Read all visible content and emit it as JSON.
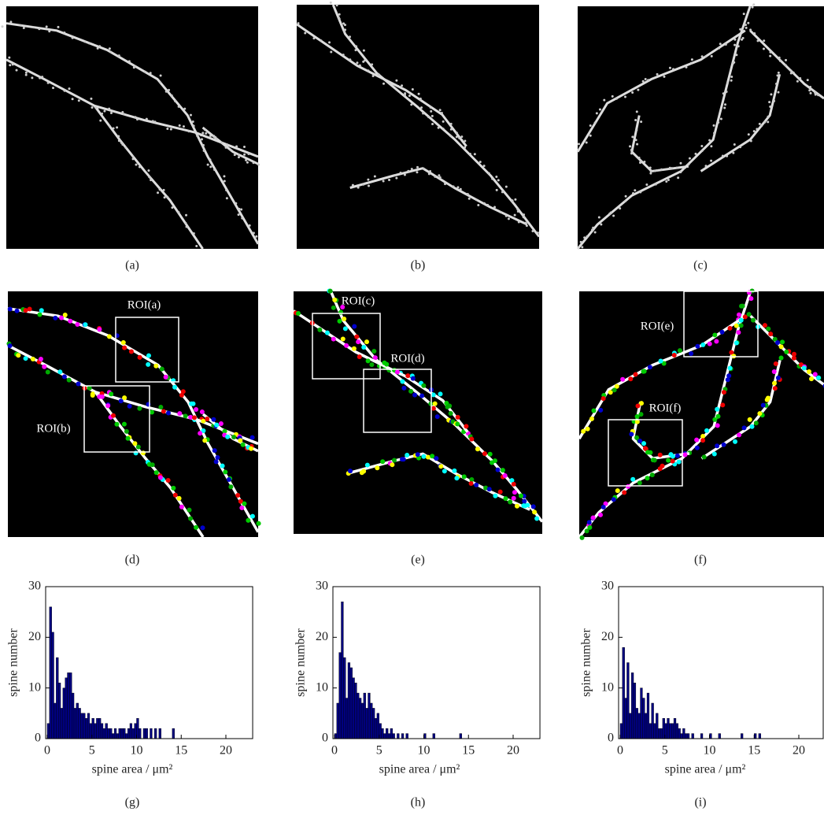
{
  "panel_labels": [
    "(a)",
    "(b)",
    "(c)",
    "(d)",
    "(e)",
    "(f)",
    "(g)",
    "(h)",
    "(i)"
  ],
  "roi_labels": [
    "ROI(a)",
    "ROI(b)",
    "ROI(c)",
    "ROI(d)",
    "ROI(e)",
    "ROI(f)"
  ],
  "chart_data": [
    {
      "type": "histogram",
      "xlabel": "spine area / μm²",
      "ylabel": "spine number",
      "color": "#000080",
      "bins": [
        0,
        0.25,
        0.5,
        0.75,
        1,
        1.25,
        1.5,
        1.75,
        2,
        2.25,
        2.5,
        2.75,
        3,
        3.25,
        3.5,
        3.75,
        4,
        4.25,
        4.5,
        4.75,
        5,
        5.25,
        5.5,
        5.75,
        6,
        6.25,
        6.5,
        6.75,
        7,
        7.25,
        7.5,
        7.75,
        8,
        8.25,
        8.5,
        8.75,
        9,
        9.25,
        9.5,
        9.75,
        10,
        10.25,
        10.5,
        10.75,
        11,
        11.25,
        11.5,
        11.75,
        12,
        12.25,
        12.5,
        12.75,
        13,
        13.25,
        13.5,
        13.75,
        14,
        14.25,
        14.5,
        14.75,
        15,
        15.25,
        15.5,
        15.75,
        16
      ],
      "values": [
        3,
        26,
        21,
        7,
        16,
        11,
        6,
        10,
        12,
        13,
        13,
        9,
        6,
        7,
        6,
        5,
        5,
        4,
        5,
        3,
        4,
        3,
        4,
        4,
        3,
        2,
        3,
        2,
        2,
        1,
        2,
        1,
        2,
        2,
        2,
        1,
        2,
        3,
        2,
        3,
        4,
        2,
        0,
        2,
        2,
        0,
        2,
        0,
        2,
        0,
        2,
        0,
        0,
        0,
        0,
        0,
        2,
        0,
        0,
        0,
        0,
        0,
        0,
        0
      ],
      "xlim": [
        0,
        23
      ],
      "ylim": [
        0,
        30
      ],
      "xticks": [
        0,
        5,
        10,
        15,
        20
      ],
      "yticks": [
        0,
        10,
        20,
        30
      ]
    },
    {
      "type": "histogram",
      "xlabel": "spine area / μm²",
      "ylabel": "spine number",
      "color": "#000080",
      "bins": [
        0,
        0.25,
        0.5,
        0.75,
        1,
        1.25,
        1.5,
        1.75,
        2,
        2.25,
        2.5,
        2.75,
        3,
        3.25,
        3.5,
        3.75,
        4,
        4.25,
        4.5,
        4.75,
        5,
        5.25,
        5.5,
        5.75,
        6,
        6.25,
        6.5,
        6.75,
        7,
        7.25,
        7.5,
        7.75,
        8,
        8.25,
        8.5,
        8.75,
        9,
        9.25,
        9.5,
        9.75,
        10,
        10.25,
        10.5,
        10.75,
        11,
        11.25,
        11.5,
        11.75,
        12,
        12.25,
        12.5,
        12.75,
        13,
        13.25,
        13.5,
        13.75,
        14,
        14.25,
        14.5,
        14.75,
        15,
        15.25,
        15.5,
        15.75,
        16
      ],
      "values": [
        1,
        7,
        17,
        27,
        16,
        8,
        15,
        14,
        12,
        11,
        9,
        8,
        7,
        9,
        6,
        9,
        7,
        6,
        4,
        5,
        3,
        2,
        1,
        2,
        1,
        2,
        1,
        0,
        1,
        0,
        1,
        0,
        1,
        0,
        0,
        0,
        0,
        0,
        0,
        0,
        1,
        0,
        0,
        0,
        1,
        0,
        0,
        0,
        0,
        0,
        0,
        0,
        0,
        0,
        0,
        0,
        1,
        0,
        0,
        0,
        0,
        0,
        0,
        0
      ],
      "xlim": [
        0,
        23
      ],
      "ylim": [
        0,
        30
      ],
      "xticks": [
        0,
        5,
        10,
        15,
        20
      ],
      "yticks": [
        0,
        10,
        20,
        30
      ]
    },
    {
      "type": "histogram",
      "xlabel": "spine area / μm²",
      "ylabel": "spine number",
      "color": "#000080",
      "bins": [
        0,
        0.25,
        0.5,
        0.75,
        1,
        1.25,
        1.5,
        1.75,
        2,
        2.25,
        2.5,
        2.75,
        3,
        3.25,
        3.5,
        3.75,
        4,
        4.25,
        4.5,
        4.75,
        5,
        5.25,
        5.5,
        5.75,
        6,
        6.25,
        6.5,
        6.75,
        7,
        7.25,
        7.5,
        7.75,
        8,
        8.25,
        8.5,
        8.75,
        9,
        9.25,
        9.5,
        9.75,
        10,
        10.25,
        10.5,
        10.75,
        11,
        11.25,
        11.5,
        11.75,
        12,
        12.25,
        12.5,
        12.75,
        13,
        13.25,
        13.5,
        13.75,
        14,
        14.25,
        14.5,
        14.75,
        15,
        15.25,
        15.5,
        15.75,
        16
      ],
      "values": [
        3,
        18,
        8,
        15,
        5,
        13,
        11,
        6,
        5,
        10,
        8,
        5,
        9,
        3,
        7,
        3,
        5,
        2,
        2,
        4,
        3,
        4,
        3,
        3,
        4,
        3,
        2,
        1,
        2,
        1,
        1,
        0,
        1,
        0,
        0,
        0,
        1,
        0,
        0,
        0,
        1,
        0,
        0,
        0,
        1,
        0,
        0,
        0,
        0,
        0,
        0,
        0,
        0,
        0,
        1,
        0,
        0,
        0,
        0,
        0,
        1,
        0,
        1,
        0
      ],
      "xlim": [
        0,
        23
      ],
      "ylim": [
        0,
        30
      ],
      "xticks": [
        0,
        5,
        10,
        15,
        20
      ],
      "yticks": [
        0,
        10,
        20,
        30
      ]
    }
  ]
}
